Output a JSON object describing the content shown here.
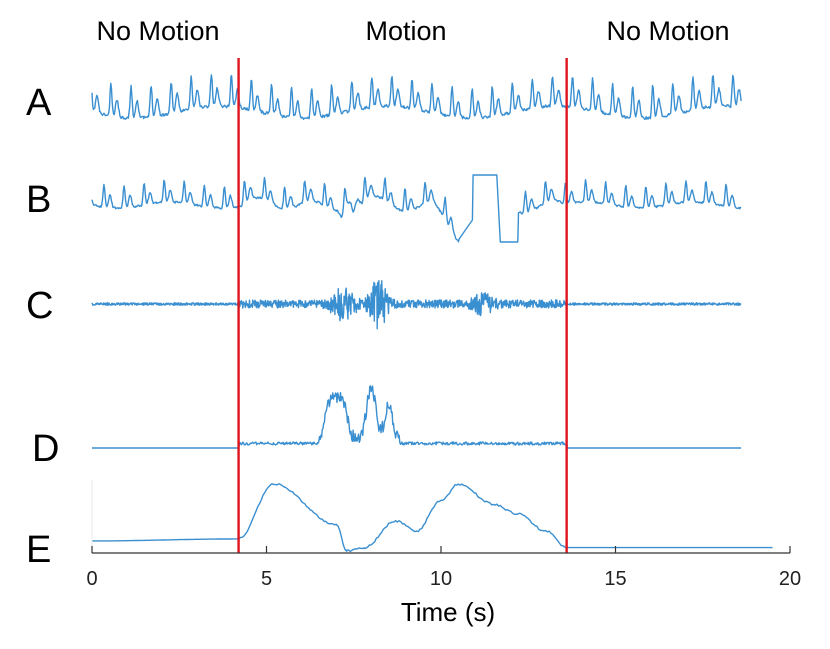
{
  "chart_data": {
    "type": "line",
    "title": "",
    "xlabel": "Time (s)",
    "ylabel": "",
    "xlim": [
      0,
      20
    ],
    "xticks": [
      0,
      5,
      10,
      15,
      20
    ],
    "grid": false,
    "line_color": "#3a8fd1",
    "marker_color": "#e0141e",
    "markers": [
      4.2,
      13.6
    ],
    "regions": [
      {
        "label": "No Motion",
        "start": 0,
        "end": 4.2
      },
      {
        "label": "Motion",
        "start": 4.2,
        "end": 13.6
      },
      {
        "label": "No Motion",
        "start": 13.6,
        "end": 18.6
      }
    ],
    "series": [
      {
        "name": "A",
        "waveform": "periodic",
        "x": [
          0,
          18.6
        ]
      },
      {
        "name": "B",
        "waveform": "periodic-with-clipping",
        "x": [
          0,
          18.6
        ]
      },
      {
        "name": "C",
        "waveform": "noise-burst",
        "x": [
          0,
          18.6
        ]
      },
      {
        "name": "D",
        "waveform": "envelope",
        "x": [
          0,
          18.6
        ]
      },
      {
        "name": "E",
        "waveform": "smooth",
        "x": [
          0,
          4.2,
          5.2,
          7.0,
          7.3,
          7.8,
          8.7,
          9.3,
          10.0,
          10.5,
          11.5,
          12.2,
          13.0,
          13.6,
          19.5
        ],
        "y": [
          0.15,
          0.18,
          1.0,
          0.4,
          0.0,
          0.05,
          0.45,
          0.3,
          0.75,
          1.0,
          0.7,
          0.55,
          0.3,
          0.05,
          0.05
        ]
      }
    ]
  }
}
